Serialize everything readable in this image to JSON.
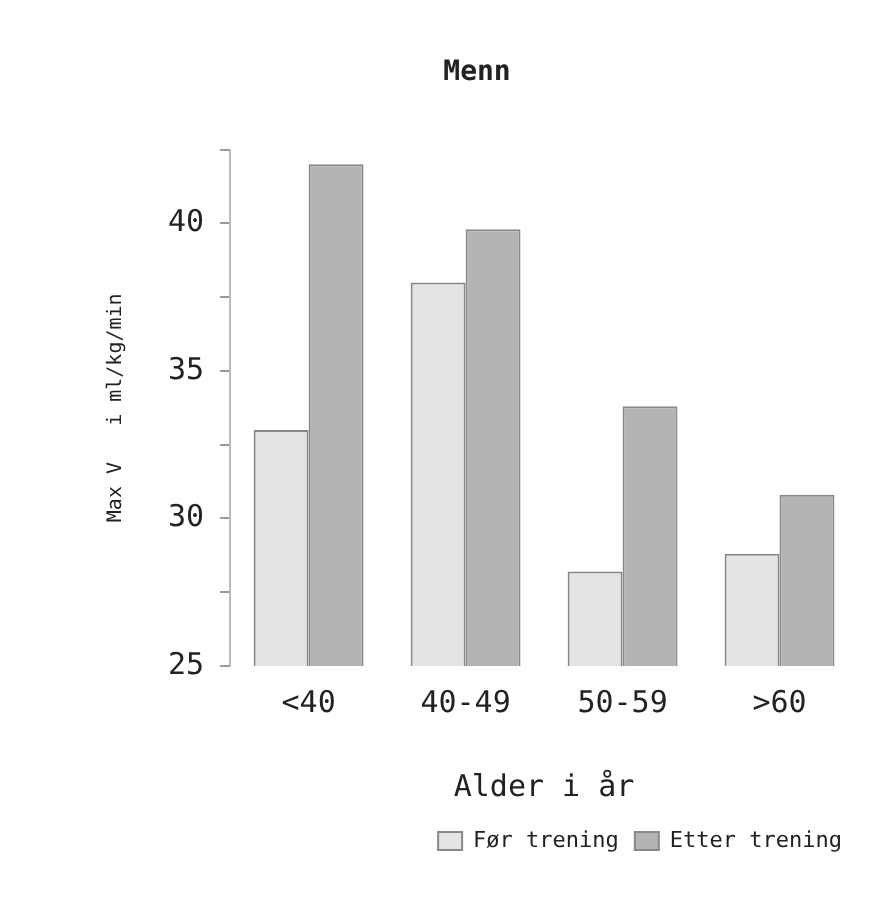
{
  "chart_data": {
    "type": "bar",
    "title": "Menn",
    "xlabel": "Alder i år",
    "ylabel": "Max V   i ml/kg/min",
    "categories": [
      "<40",
      "40-49",
      "50-59",
      ">60"
    ],
    "series": [
      {
        "name": "Før trening",
        "color": "#e4e4e4",
        "values": [
          33.0,
          38.0,
          28.2,
          28.8
        ]
      },
      {
        "name": "Etter trening",
        "color": "#b4b4b4",
        "values": [
          42.0,
          39.8,
          33.8,
          30.8
        ]
      }
    ],
    "ylim": [
      25,
      42.5
    ],
    "yticks": [
      25,
      {
        "value": 27.5,
        "label": null
      },
      30,
      {
        "value": 32.5,
        "label": null
      },
      35,
      {
        "value": 37.5,
        "label": null
      },
      40,
      {
        "value": 42.5,
        "label": null
      }
    ],
    "grid": false,
    "legend": "bottom right"
  }
}
